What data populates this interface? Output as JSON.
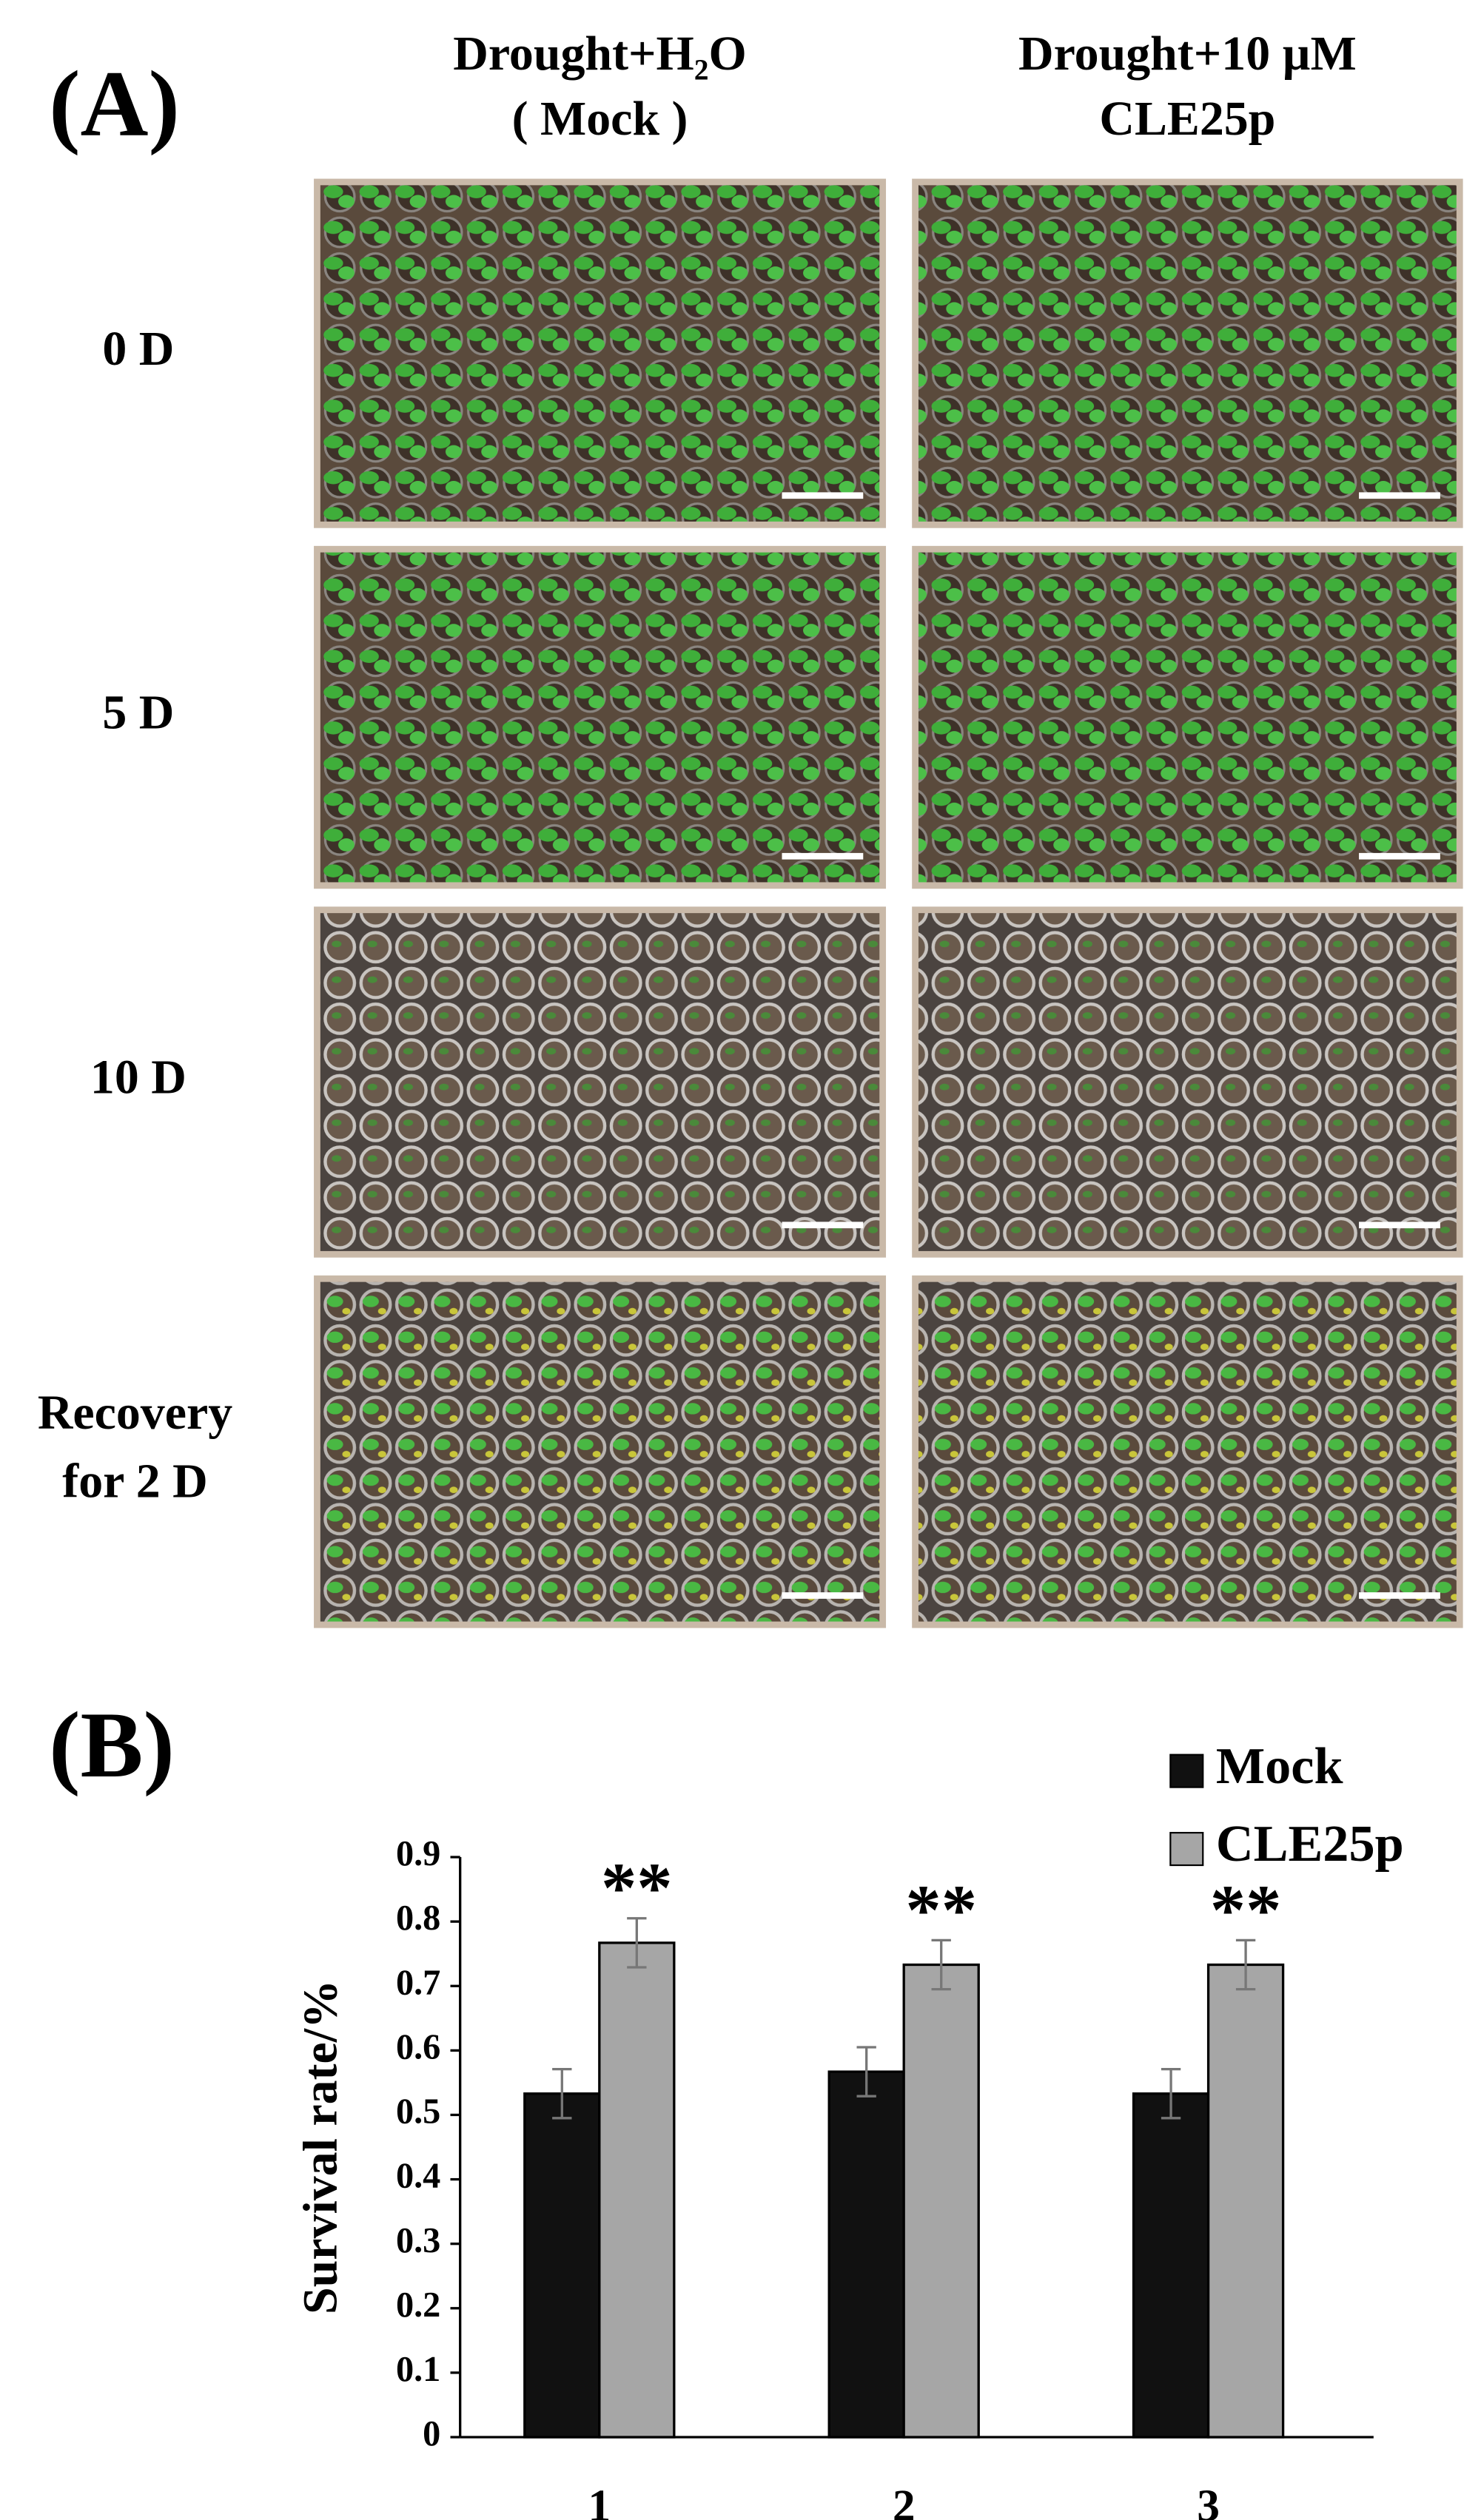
{
  "panel_a": {
    "label": "(A)",
    "columns": [
      [
        "Drought+H₂O",
        "( Mock )"
      ],
      [
        "Drought+10 µM",
        "CLE25p"
      ]
    ],
    "rows": [
      [
        "0 D"
      ],
      [
        "5 D"
      ],
      [
        "10 D"
      ],
      [
        "Recovery",
        "for 2 D"
      ]
    ]
  },
  "chart_data": {
    "type": "bar",
    "panel_label": "(B)",
    "y_label": "Survival rate/%",
    "categories": [
      "1",
      "2",
      "3"
    ],
    "series": [
      {
        "name": "Mock",
        "color": "#111111",
        "values": [
          0.533,
          0.567,
          0.533
        ],
        "errors": [
          0.038,
          0.038,
          0.038
        ]
      },
      {
        "name": "CLE25p",
        "color": "#a6a6a6",
        "values": [
          0.767,
          0.733,
          0.733
        ],
        "errors": [
          0.038,
          0.038,
          0.038
        ]
      }
    ],
    "annotations": [
      "**",
      "**",
      "**"
    ],
    "ylim": [
      0,
      0.9
    ],
    "yticks": [
      0,
      0.1,
      0.2,
      0.3,
      0.4,
      0.5,
      0.6,
      0.7,
      0.8,
      0.9
    ],
    "legend": "top-right"
  }
}
